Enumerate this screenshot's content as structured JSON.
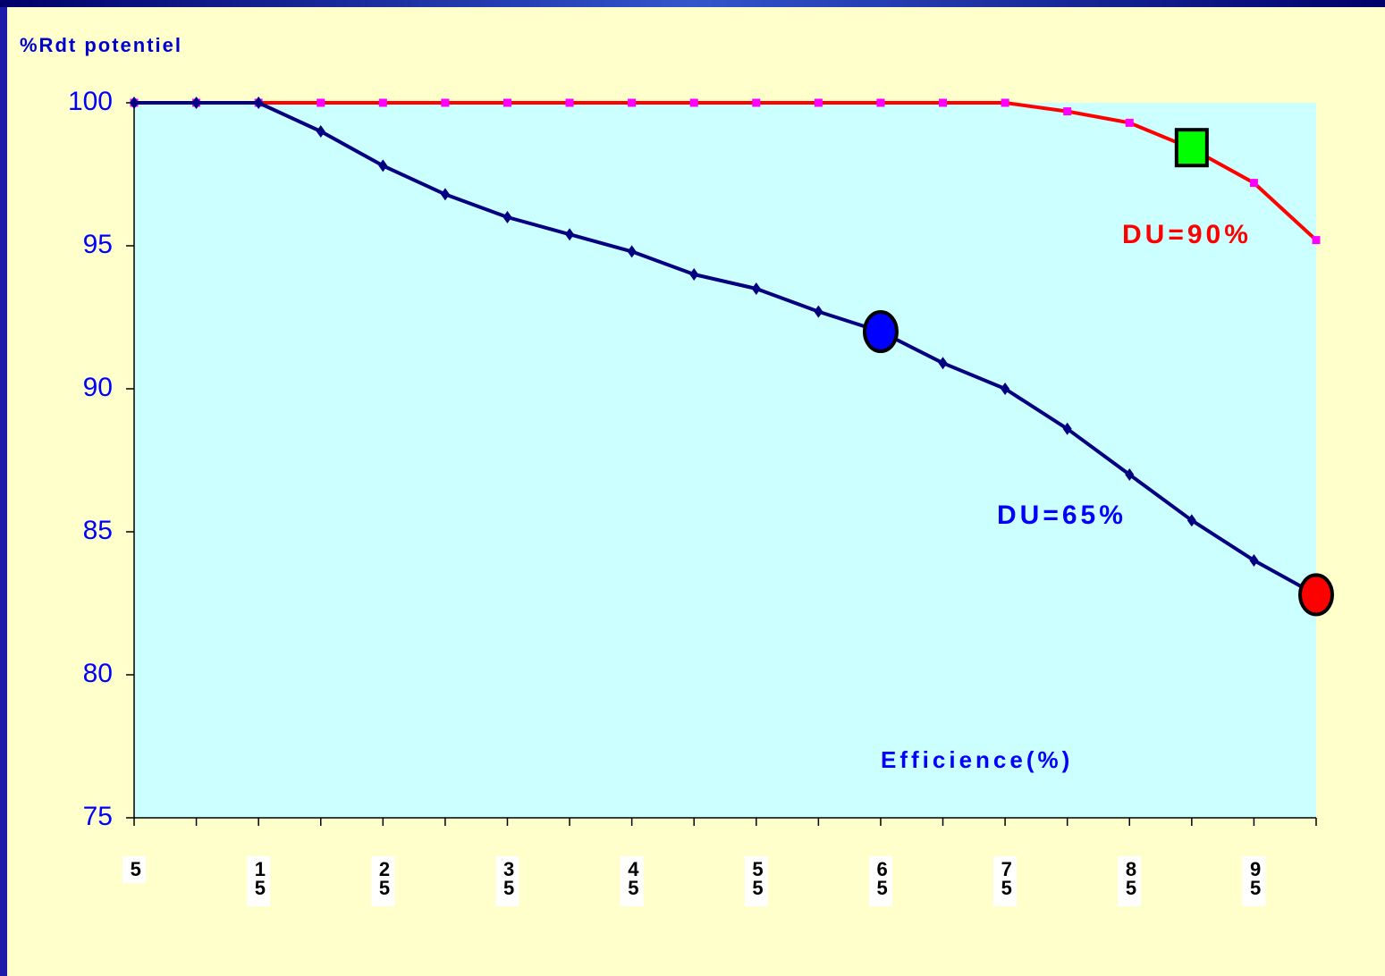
{
  "chart_data": {
    "type": "line",
    "y_label": "%Rdt potentiel",
    "x_label": "Efficience(%)",
    "categories": [
      "5",
      null,
      "15",
      null,
      "25",
      null,
      "35",
      null,
      "45",
      null,
      "55",
      null,
      "65",
      null,
      "75",
      null,
      "85",
      null,
      "95",
      null
    ],
    "series": [
      {
        "name": "DU=90%",
        "color": "#ff0000",
        "marker_color": "#ff00ff",
        "marker": "square",
        "values": [
          100,
          100,
          100,
          100,
          100,
          100,
          100,
          100,
          100,
          100,
          100,
          100,
          100,
          100,
          100,
          99.7,
          99.3,
          98.4,
          97.2,
          95.2
        ]
      },
      {
        "name": "DU=65%",
        "color": "#000080",
        "marker_color": "#000080",
        "marker": "diamond",
        "values": [
          100,
          100,
          100,
          99.0,
          97.8,
          96.8,
          96.0,
          95.4,
          94.8,
          94.0,
          93.5,
          92.7,
          92.0,
          90.9,
          90.0,
          88.6,
          87.0,
          85.4,
          84.0,
          82.8
        ]
      }
    ],
    "highlights": [
      {
        "series": 0,
        "index": 17,
        "shape": "square",
        "color": "#00ff00"
      },
      {
        "series": 1,
        "index": 12,
        "shape": "circle",
        "color": "#0000ff"
      },
      {
        "series": 1,
        "index": 19,
        "shape": "circle",
        "color": "#ff0000"
      }
    ],
    "ylim": [
      75,
      100
    ],
    "yticks": [
      75,
      80,
      85,
      90,
      95,
      100
    ],
    "grid": false,
    "plot_background": "#ccffff"
  }
}
